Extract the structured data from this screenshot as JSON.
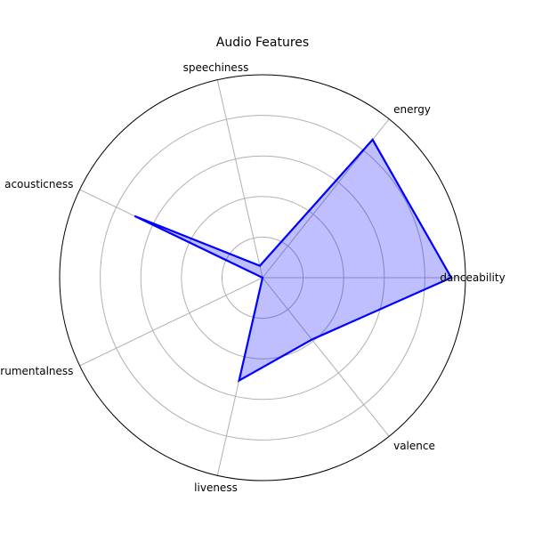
{
  "chart_data": {
    "type": "radar",
    "title": "Audio Features",
    "categories": [
      "danceability",
      "energy",
      "speechiness",
      "acousticness",
      "instrumentalness",
      "liveness",
      "valence"
    ],
    "series": [
      {
        "values": [
          0.93,
          0.87,
          0.06,
          0.7,
          0.0,
          0.52,
          0.39
        ],
        "line_color": "#0000ff",
        "fill_color": "#0000ff",
        "fill_alpha": 0.25
      }
    ],
    "rlim": [
      0,
      1
    ],
    "radial_gridlines": [
      0.2,
      0.4,
      0.6,
      0.8
    ],
    "grid": true,
    "grid_color": "#b0b0b0",
    "outer_circle_color": "#000000"
  }
}
